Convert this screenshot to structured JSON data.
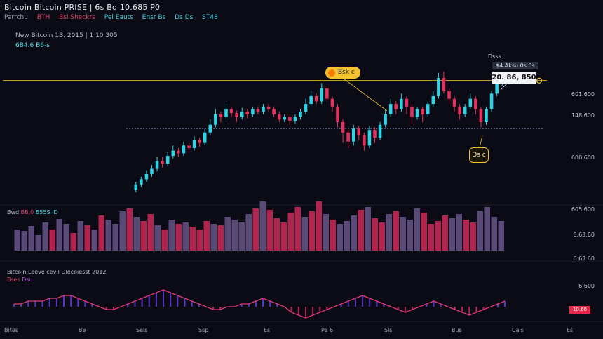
{
  "header": {
    "title": "Bitcoin Bitcoin PRISE | 6s  Bd 10.685 P0",
    "sub": [
      "Parrchu",
      "BTH",
      "Bsl Sheckrs",
      "Pel Eauts",
      "Ensr Bs",
      "Ds Ds",
      "ST48"
    ]
  },
  "symbol": {
    "name": "New Bitcoin 1B. 2015 | 1 10 305",
    "price": "6B4.6 B6-s"
  },
  "price_axis": [
    "601.600",
    "148.600",
    "600.600"
  ],
  "volume_axis": [
    "605.600",
    "6.63.60",
    "6.63.60"
  ],
  "indicator_axis": [
    "6.600"
  ],
  "tooltip": {
    "top": "Dsss",
    "label": "$4 Aksu 0s 6s",
    "last": "20. 86, 850"
  },
  "pill": {
    "label": "Bsk c"
  },
  "low_badge": "Ds c",
  "volume_label": {
    "a": "Bwd",
    "b": "BB,0",
    "c": "B55S ID"
  },
  "indicator_label": {
    "line1": "Bitcoin Leeve cevil Dlecoiesst 2012",
    "line2a": "Bses",
    "line2b": "Dsu"
  },
  "indicator_badge": "10.60",
  "x_labels": [
    "Bites",
    "Be",
    "Sels",
    "Ssp",
    "Es",
    "Pe 6",
    "Sls",
    "Bus",
    "Cais",
    "Es"
  ],
  "colors": {
    "up": "#2fd3e6",
    "down": "#e3325f",
    "gold": "#f4c430",
    "vol_up": "#5a4a78",
    "vol_down": "#b0244f"
  },
  "chart_data": {
    "type": "candlestick",
    "title": "",
    "xlabel": "",
    "ylabel": "",
    "ylim": [
      0,
      100
    ],
    "horizontal_line_levels": [
      92,
      55
    ],
    "candles": [
      [
        8,
        12,
        14,
        6
      ],
      [
        12,
        16,
        18,
        10
      ],
      [
        16,
        20,
        23,
        14
      ],
      [
        20,
        24,
        27,
        18
      ],
      [
        24,
        30,
        33,
        22
      ],
      [
        30,
        28,
        33,
        25
      ],
      [
        28,
        34,
        37,
        26
      ],
      [
        34,
        38,
        42,
        32
      ],
      [
        38,
        36,
        40,
        33
      ],
      [
        36,
        42,
        45,
        34
      ],
      [
        42,
        40,
        44,
        37
      ],
      [
        40,
        46,
        49,
        38
      ],
      [
        46,
        44,
        48,
        41
      ],
      [
        44,
        52,
        55,
        42
      ],
      [
        52,
        58,
        62,
        50
      ],
      [
        58,
        66,
        70,
        56
      ],
      [
        66,
        64,
        68,
        60
      ],
      [
        64,
        70,
        74,
        62
      ],
      [
        70,
        67,
        72,
        64
      ],
      [
        67,
        64,
        69,
        60
      ],
      [
        64,
        68,
        71,
        62
      ],
      [
        68,
        66,
        70,
        63
      ],
      [
        66,
        70,
        72,
        64
      ],
      [
        70,
        68,
        72,
        66
      ],
      [
        68,
        72,
        74,
        66
      ],
      [
        72,
        70,
        74,
        68
      ],
      [
        70,
        66,
        72,
        64
      ],
      [
        66,
        62,
        68,
        60
      ],
      [
        62,
        64,
        66,
        60
      ],
      [
        64,
        61,
        66,
        58
      ],
      [
        61,
        64,
        66,
        59
      ],
      [
        64,
        68,
        70,
        62
      ],
      [
        68,
        74,
        78,
        66
      ],
      [
        74,
        80,
        84,
        72
      ],
      [
        80,
        76,
        82,
        74
      ],
      [
        76,
        86,
        90,
        74
      ],
      [
        86,
        78,
        88,
        76
      ],
      [
        78,
        72,
        80,
        68
      ],
      [
        72,
        60,
        74,
        56
      ],
      [
        60,
        52,
        62,
        44
      ],
      [
        52,
        45,
        54,
        40
      ],
      [
        45,
        55,
        58,
        42
      ],
      [
        55,
        50,
        57,
        46
      ],
      [
        50,
        42,
        52,
        38
      ],
      [
        42,
        54,
        57,
        40
      ],
      [
        54,
        48,
        56,
        44
      ],
      [
        48,
        58,
        60,
        46
      ],
      [
        58,
        66,
        70,
        56
      ],
      [
        66,
        74,
        78,
        64
      ],
      [
        74,
        70,
        76,
        66
      ],
      [
        70,
        78,
        82,
        68
      ],
      [
        78,
        72,
        80,
        66
      ],
      [
        72,
        64,
        74,
        58
      ],
      [
        64,
        70,
        72,
        62
      ],
      [
        70,
        66,
        72,
        60
      ],
      [
        66,
        74,
        76,
        64
      ],
      [
        74,
        80,
        84,
        72
      ],
      [
        80,
        94,
        98,
        78
      ],
      [
        94,
        84,
        99,
        82
      ],
      [
        84,
        78,
        86,
        74
      ],
      [
        78,
        72,
        80,
        68
      ],
      [
        72,
        66,
        74,
        62
      ],
      [
        66,
        72,
        74,
        64
      ],
      [
        72,
        78,
        82,
        70
      ],
      [
        78,
        70,
        80,
        66
      ],
      [
        70,
        60,
        72,
        56
      ],
      [
        60,
        70,
        72,
        58
      ],
      [
        70,
        82,
        84,
        68
      ],
      [
        82,
        90,
        94,
        80
      ],
      [
        90,
        94,
        96,
        88
      ]
    ],
    "volume": [
      30,
      28,
      35,
      22,
      40,
      30,
      45,
      38,
      25,
      42,
      36,
      30,
      50,
      44,
      38,
      56,
      60,
      48,
      42,
      52,
      36,
      30,
      44,
      38,
      40,
      34,
      30,
      42,
      38,
      36,
      48,
      44,
      40,
      52,
      60,
      70,
      58,
      46,
      40,
      54,
      62,
      48,
      56,
      70,
      52,
      44,
      38,
      42,
      50,
      58,
      62,
      46,
      40,
      52,
      56,
      48,
      44,
      60,
      54,
      38,
      42,
      50,
      46,
      52,
      44,
      40,
      56,
      62,
      48,
      42
    ],
    "indicator": [
      1,
      1,
      2,
      2,
      2,
      3,
      3,
      4,
      4,
      3,
      2,
      1,
      0,
      -1,
      -1,
      0,
      1,
      2,
      3,
      4,
      5,
      6,
      5,
      4,
      3,
      2,
      1,
      0,
      -1,
      -1,
      0,
      0,
      1,
      1,
      2,
      3,
      2,
      1,
      0,
      -2,
      -3,
      -4,
      -3,
      -2,
      -1,
      0,
      1,
      2,
      3,
      4,
      3,
      2,
      1,
      0,
      -1,
      -2,
      -1,
      0,
      1,
      2,
      1,
      0,
      -1,
      -2,
      -3,
      -2,
      -1,
      0,
      1,
      2
    ]
  }
}
